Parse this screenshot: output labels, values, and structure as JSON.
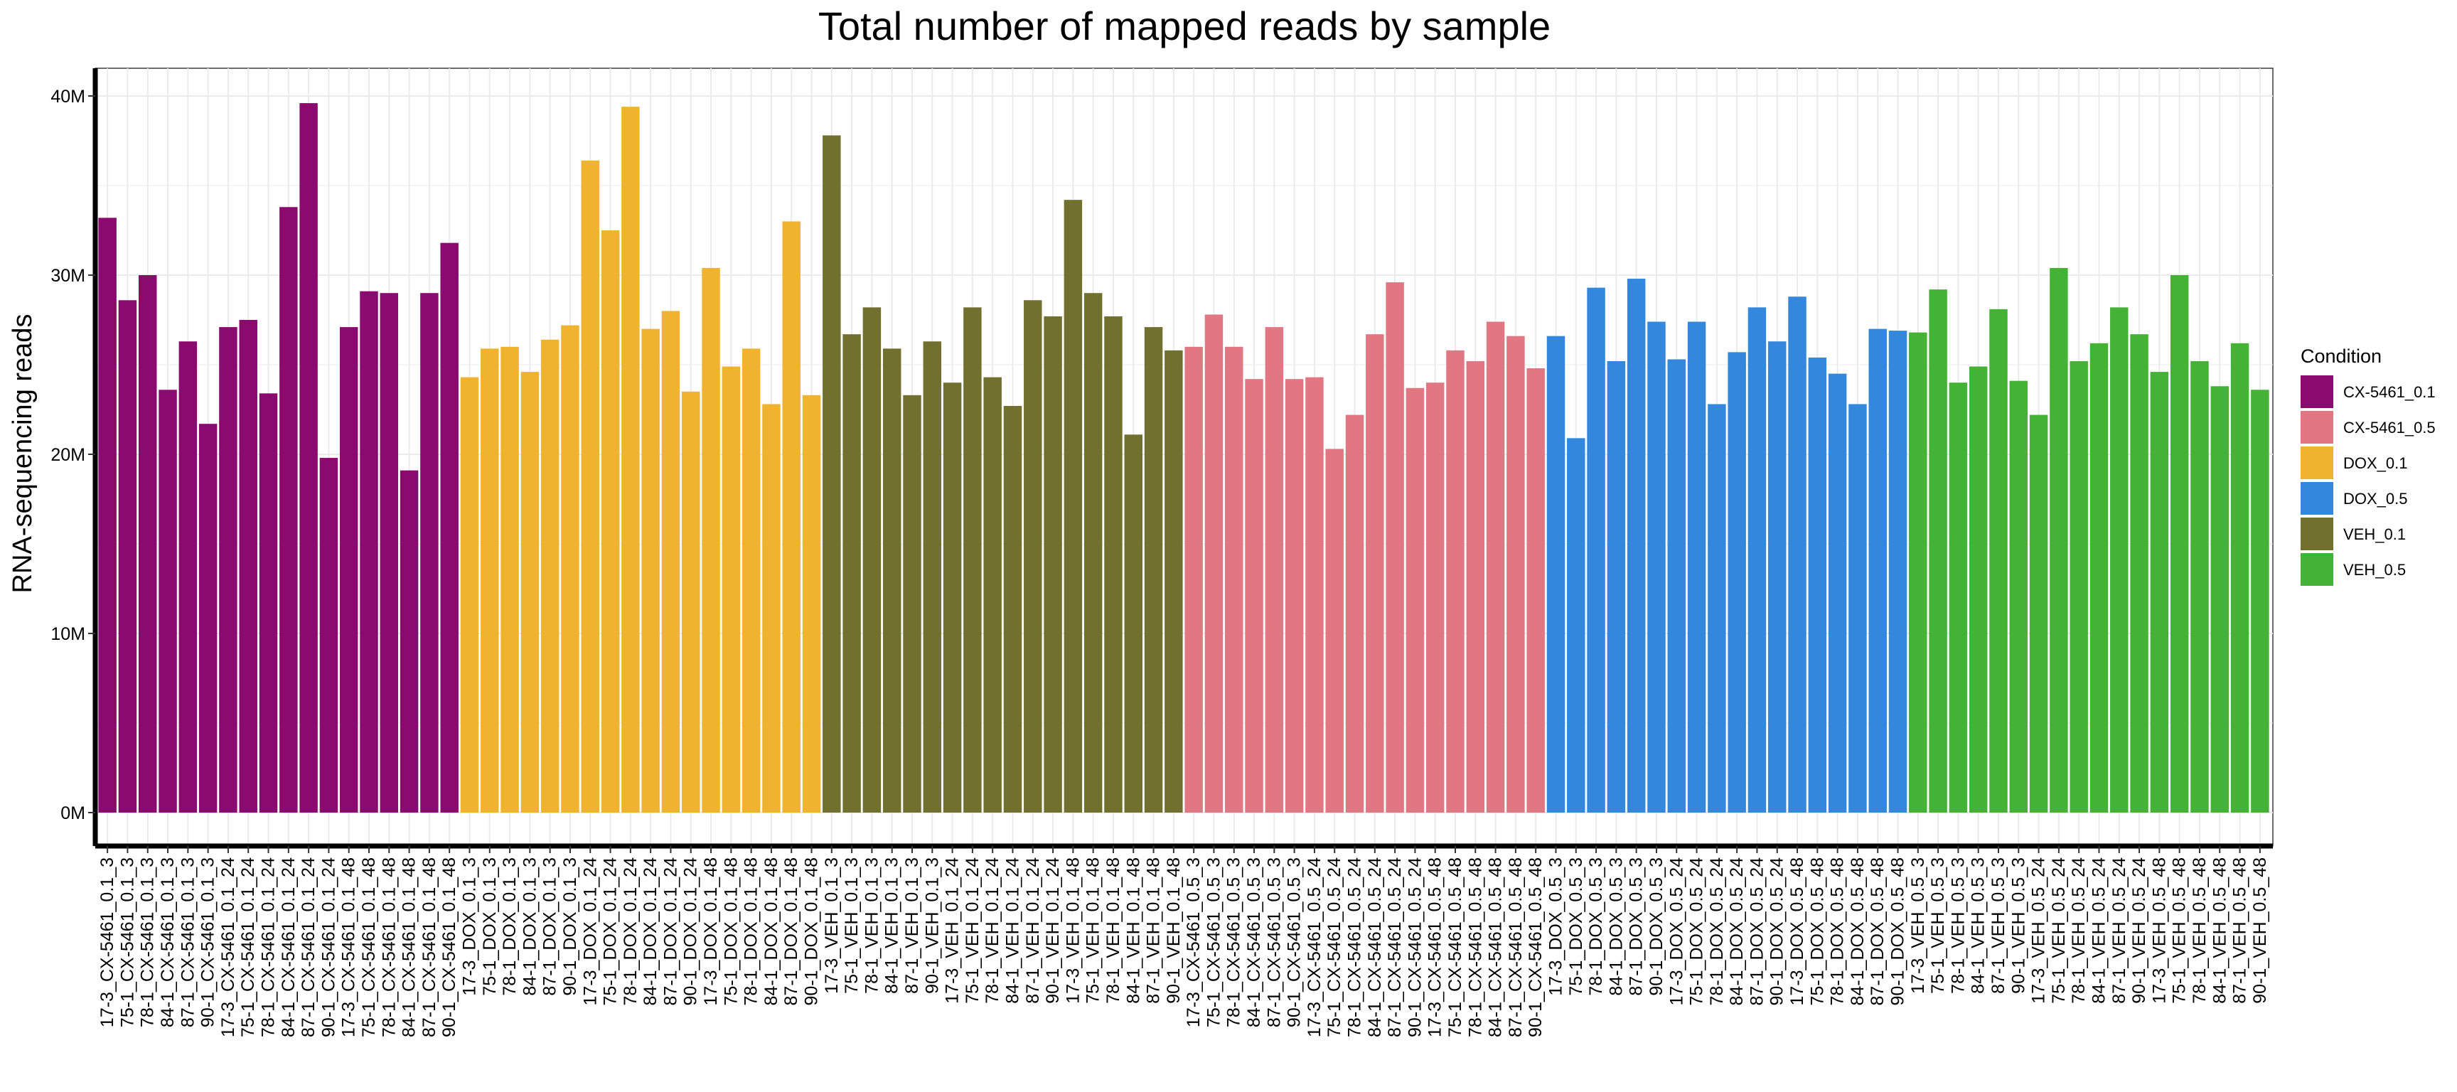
{
  "chart_data": {
    "type": "bar",
    "title": "Total number of mapped reads by sample",
    "xlabel": "",
    "ylabel": "RNA-sequencing reads",
    "ylim": [
      0,
      41
    ],
    "y_unit": "millions of reads",
    "y_ticks": [
      {
        "value": 0,
        "label": "0M"
      },
      {
        "value": 10,
        "label": "10M"
      },
      {
        "value": 20,
        "label": "20M"
      },
      {
        "value": 30,
        "label": "30M"
      },
      {
        "value": 40,
        "label": "40M"
      }
    ],
    "grid": true,
    "legend": {
      "title": "Condition",
      "position": "right",
      "entries": [
        {
          "name": "CX-5461_0.1",
          "color": "#8B0A6F"
        },
        {
          "name": "CX-5461_0.5",
          "color": "#E07782"
        },
        {
          "name": "DOX_0.1",
          "color": "#F0B330"
        },
        {
          "name": "DOX_0.5",
          "color": "#3388DD"
        },
        {
          "name": "VEH_0.1",
          "color": "#72702E"
        },
        {
          "name": "VEH_0.5",
          "color": "#44B335"
        }
      ]
    },
    "bars": [
      {
        "label": "17-3_CX-5461_0.1_3",
        "value": 33.2,
        "condition": "CX-5461_0.1"
      },
      {
        "label": "75-1_CX-5461_0.1_3",
        "value": 28.6,
        "condition": "CX-5461_0.1"
      },
      {
        "label": "78-1_CX-5461_0.1_3",
        "value": 30.0,
        "condition": "CX-5461_0.1"
      },
      {
        "label": "84-1_CX-5461_0.1_3",
        "value": 23.6,
        "condition": "CX-5461_0.1"
      },
      {
        "label": "87-1_CX-5461_0.1_3",
        "value": 26.3,
        "condition": "CX-5461_0.1"
      },
      {
        "label": "90-1_CX-5461_0.1_3",
        "value": 21.7,
        "condition": "CX-5461_0.1"
      },
      {
        "label": "17-3_CX-5461_0.1_24",
        "value": 27.1,
        "condition": "CX-5461_0.1"
      },
      {
        "label": "75-1_CX-5461_0.1_24",
        "value": 27.5,
        "condition": "CX-5461_0.1"
      },
      {
        "label": "78-1_CX-5461_0.1_24",
        "value": 23.4,
        "condition": "CX-5461_0.1"
      },
      {
        "label": "84-1_CX-5461_0.1_24",
        "value": 33.8,
        "condition": "CX-5461_0.1"
      },
      {
        "label": "87-1_CX-5461_0.1_24",
        "value": 39.6,
        "condition": "CX-5461_0.1"
      },
      {
        "label": "90-1_CX-5461_0.1_24",
        "value": 19.8,
        "condition": "CX-5461_0.1"
      },
      {
        "label": "17-3_CX-5461_0.1_48",
        "value": 27.1,
        "condition": "CX-5461_0.1"
      },
      {
        "label": "75-1_CX-5461_0.1_48",
        "value": 29.1,
        "condition": "CX-5461_0.1"
      },
      {
        "label": "78-1_CX-5461_0.1_48",
        "value": 29.0,
        "condition": "CX-5461_0.1"
      },
      {
        "label": "84-1_CX-5461_0.1_48",
        "value": 19.1,
        "condition": "CX-5461_0.1"
      },
      {
        "label": "87-1_CX-5461_0.1_48",
        "value": 29.0,
        "condition": "CX-5461_0.1"
      },
      {
        "label": "90-1_CX-5461_0.1_48",
        "value": 31.8,
        "condition": "CX-5461_0.1"
      },
      {
        "label": "17-3_DOX_0.1_3",
        "value": 24.3,
        "condition": "DOX_0.1"
      },
      {
        "label": "75-1_DOX_0.1_3",
        "value": 25.9,
        "condition": "DOX_0.1"
      },
      {
        "label": "78-1_DOX_0.1_3",
        "value": 26.0,
        "condition": "DOX_0.1"
      },
      {
        "label": "84-1_DOX_0.1_3",
        "value": 24.6,
        "condition": "DOX_0.1"
      },
      {
        "label": "87-1_DOX_0.1_3",
        "value": 26.4,
        "condition": "DOX_0.1"
      },
      {
        "label": "90-1_DOX_0.1_3",
        "value": 27.2,
        "condition": "DOX_0.1"
      },
      {
        "label": "17-3_DOX_0.1_24",
        "value": 36.4,
        "condition": "DOX_0.1"
      },
      {
        "label": "75-1_DOX_0.1_24",
        "value": 32.5,
        "condition": "DOX_0.1"
      },
      {
        "label": "78-1_DOX_0.1_24",
        "value": 39.4,
        "condition": "DOX_0.1"
      },
      {
        "label": "84-1_DOX_0.1_24",
        "value": 27.0,
        "condition": "DOX_0.1"
      },
      {
        "label": "87-1_DOX_0.1_24",
        "value": 28.0,
        "condition": "DOX_0.1"
      },
      {
        "label": "90-1_DOX_0.1_24",
        "value": 23.5,
        "condition": "DOX_0.1"
      },
      {
        "label": "17-3_DOX_0.1_48",
        "value": 30.4,
        "condition": "DOX_0.1"
      },
      {
        "label": "75-1_DOX_0.1_48",
        "value": 24.9,
        "condition": "DOX_0.1"
      },
      {
        "label": "78-1_DOX_0.1_48",
        "value": 25.9,
        "condition": "DOX_0.1"
      },
      {
        "label": "84-1_DOX_0.1_48",
        "value": 22.8,
        "condition": "DOX_0.1"
      },
      {
        "label": "87-1_DOX_0.1_48",
        "value": 33.0,
        "condition": "DOX_0.1"
      },
      {
        "label": "90-1_DOX_0.1_48",
        "value": 23.3,
        "condition": "DOX_0.1"
      },
      {
        "label": "17-3_VEH_0.1_3",
        "value": 37.8,
        "condition": "VEH_0.1"
      },
      {
        "label": "75-1_VEH_0.1_3",
        "value": 26.7,
        "condition": "VEH_0.1"
      },
      {
        "label": "78-1_VEH_0.1_3",
        "value": 28.2,
        "condition": "VEH_0.1"
      },
      {
        "label": "84-1_VEH_0.1_3",
        "value": 25.9,
        "condition": "VEH_0.1"
      },
      {
        "label": "87-1_VEH_0.1_3",
        "value": 23.3,
        "condition": "VEH_0.1"
      },
      {
        "label": "90-1_VEH_0.1_3",
        "value": 26.3,
        "condition": "VEH_0.1"
      },
      {
        "label": "17-3_VEH_0.1_24",
        "value": 24.0,
        "condition": "VEH_0.1"
      },
      {
        "label": "75-1_VEH_0.1_24",
        "value": 28.2,
        "condition": "VEH_0.1"
      },
      {
        "label": "78-1_VEH_0.1_24",
        "value": 24.3,
        "condition": "VEH_0.1"
      },
      {
        "label": "84-1_VEH_0.1_24",
        "value": 22.7,
        "condition": "VEH_0.1"
      },
      {
        "label": "87-1_VEH_0.1_24",
        "value": 28.6,
        "condition": "VEH_0.1"
      },
      {
        "label": "90-1_VEH_0.1_24",
        "value": 27.7,
        "condition": "VEH_0.1"
      },
      {
        "label": "17-3_VEH_0.1_48",
        "value": 34.2,
        "condition": "VEH_0.1"
      },
      {
        "label": "75-1_VEH_0.1_48",
        "value": 29.0,
        "condition": "VEH_0.1"
      },
      {
        "label": "78-1_VEH_0.1_48",
        "value": 27.7,
        "condition": "VEH_0.1"
      },
      {
        "label": "84-1_VEH_0.1_48",
        "value": 21.1,
        "condition": "VEH_0.1"
      },
      {
        "label": "87-1_VEH_0.1_48",
        "value": 27.1,
        "condition": "VEH_0.1"
      },
      {
        "label": "90-1_VEH_0.1_48",
        "value": 25.8,
        "condition": "VEH_0.1"
      },
      {
        "label": "17-3_CX-5461_0.5_3",
        "value": 26.0,
        "condition": "CX-5461_0.5"
      },
      {
        "label": "75-1_CX-5461_0.5_3",
        "value": 27.8,
        "condition": "CX-5461_0.5"
      },
      {
        "label": "78-1_CX-5461_0.5_3",
        "value": 26.0,
        "condition": "CX-5461_0.5"
      },
      {
        "label": "84-1_CX-5461_0.5_3",
        "value": 24.2,
        "condition": "CX-5461_0.5"
      },
      {
        "label": "87-1_CX-5461_0.5_3",
        "value": 27.1,
        "condition": "CX-5461_0.5"
      },
      {
        "label": "90-1_CX-5461_0.5_3",
        "value": 24.2,
        "condition": "CX-5461_0.5"
      },
      {
        "label": "17-3_CX-5461_0.5_24",
        "value": 24.3,
        "condition": "CX-5461_0.5"
      },
      {
        "label": "75-1_CX-5461_0.5_24",
        "value": 20.3,
        "condition": "CX-5461_0.5"
      },
      {
        "label": "78-1_CX-5461_0.5_24",
        "value": 22.2,
        "condition": "CX-5461_0.5"
      },
      {
        "label": "84-1_CX-5461_0.5_24",
        "value": 26.7,
        "condition": "CX-5461_0.5"
      },
      {
        "label": "87-1_CX-5461_0.5_24",
        "value": 29.6,
        "condition": "CX-5461_0.5"
      },
      {
        "label": "90-1_CX-5461_0.5_24",
        "value": 23.7,
        "condition": "CX-5461_0.5"
      },
      {
        "label": "17-3_CX-5461_0.5_48",
        "value": 24.0,
        "condition": "CX-5461_0.5"
      },
      {
        "label": "75-1_CX-5461_0.5_48",
        "value": 25.8,
        "condition": "CX-5461_0.5"
      },
      {
        "label": "78-1_CX-5461_0.5_48",
        "value": 25.2,
        "condition": "CX-5461_0.5"
      },
      {
        "label": "84-1_CX-5461_0.5_48",
        "value": 27.4,
        "condition": "CX-5461_0.5"
      },
      {
        "label": "87-1_CX-5461_0.5_48",
        "value": 26.6,
        "condition": "CX-5461_0.5"
      },
      {
        "label": "90-1_CX-5461_0.5_48",
        "value": 24.8,
        "condition": "CX-5461_0.5"
      },
      {
        "label": "17-3_DOX_0.5_3",
        "value": 26.6,
        "condition": "DOX_0.5"
      },
      {
        "label": "75-1_DOX_0.5_3",
        "value": 20.9,
        "condition": "DOX_0.5"
      },
      {
        "label": "78-1_DOX_0.5_3",
        "value": 29.3,
        "condition": "DOX_0.5"
      },
      {
        "label": "84-1_DOX_0.5_3",
        "value": 25.2,
        "condition": "DOX_0.5"
      },
      {
        "label": "87-1_DOX_0.5_3",
        "value": 29.8,
        "condition": "DOX_0.5"
      },
      {
        "label": "90-1_DOX_0.5_3",
        "value": 27.4,
        "condition": "DOX_0.5"
      },
      {
        "label": "17-3_DOX_0.5_24",
        "value": 25.3,
        "condition": "DOX_0.5"
      },
      {
        "label": "75-1_DOX_0.5_24",
        "value": 27.4,
        "condition": "DOX_0.5"
      },
      {
        "label": "78-1_DOX_0.5_24",
        "value": 22.8,
        "condition": "DOX_0.5"
      },
      {
        "label": "84-1_DOX_0.5_24",
        "value": 25.7,
        "condition": "DOX_0.5"
      },
      {
        "label": "87-1_DOX_0.5_24",
        "value": 28.2,
        "condition": "DOX_0.5"
      },
      {
        "label": "90-1_DOX_0.5_24",
        "value": 26.3,
        "condition": "DOX_0.5"
      },
      {
        "label": "17-3_DOX_0.5_48",
        "value": 28.8,
        "condition": "DOX_0.5"
      },
      {
        "label": "75-1_DOX_0.5_48",
        "value": 25.4,
        "condition": "DOX_0.5"
      },
      {
        "label": "78-1_DOX_0.5_48",
        "value": 24.5,
        "condition": "DOX_0.5"
      },
      {
        "label": "84-1_DOX_0.5_48",
        "value": 22.8,
        "condition": "DOX_0.5"
      },
      {
        "label": "87-1_DOX_0.5_48",
        "value": 27.0,
        "condition": "DOX_0.5"
      },
      {
        "label": "90-1_DOX_0.5_48",
        "value": 26.9,
        "condition": "DOX_0.5"
      },
      {
        "label": "17-3_VEH_0.5_3",
        "value": 26.8,
        "condition": "VEH_0.5"
      },
      {
        "label": "75-1_VEH_0.5_3",
        "value": 29.2,
        "condition": "VEH_0.5"
      },
      {
        "label": "78-1_VEH_0.5_3",
        "value": 24.0,
        "condition": "VEH_0.5"
      },
      {
        "label": "84-1_VEH_0.5_3",
        "value": 24.9,
        "condition": "VEH_0.5"
      },
      {
        "label": "87-1_VEH_0.5_3",
        "value": 28.1,
        "condition": "VEH_0.5"
      },
      {
        "label": "90-1_VEH_0.5_3",
        "value": 24.1,
        "condition": "VEH_0.5"
      },
      {
        "label": "17-3_VEH_0.5_24",
        "value": 22.2,
        "condition": "VEH_0.5"
      },
      {
        "label": "75-1_VEH_0.5_24",
        "value": 30.4,
        "condition": "VEH_0.5"
      },
      {
        "label": "78-1_VEH_0.5_24",
        "value": 25.2,
        "condition": "VEH_0.5"
      },
      {
        "label": "84-1_VEH_0.5_24",
        "value": 26.2,
        "condition": "VEH_0.5"
      },
      {
        "label": "87-1_VEH_0.5_24",
        "value": 28.2,
        "condition": "VEH_0.5"
      },
      {
        "label": "90-1_VEH_0.5_24",
        "value": 26.7,
        "condition": "VEH_0.5"
      },
      {
        "label": "17-3_VEH_0.5_48",
        "value": 24.6,
        "condition": "VEH_0.5"
      },
      {
        "label": "75-1_VEH_0.5_48",
        "value": 30.0,
        "condition": "VEH_0.5"
      },
      {
        "label": "78-1_VEH_0.5_48",
        "value": 25.2,
        "condition": "VEH_0.5"
      },
      {
        "label": "84-1_VEH_0.5_48",
        "value": 23.8,
        "condition": "VEH_0.5"
      },
      {
        "label": "87-1_VEH_0.5_48",
        "value": 26.2,
        "condition": "VEH_0.5"
      },
      {
        "label": "90-1_VEH_0.5_48",
        "value": 23.6,
        "condition": "VEH_0.5"
      }
    ]
  }
}
